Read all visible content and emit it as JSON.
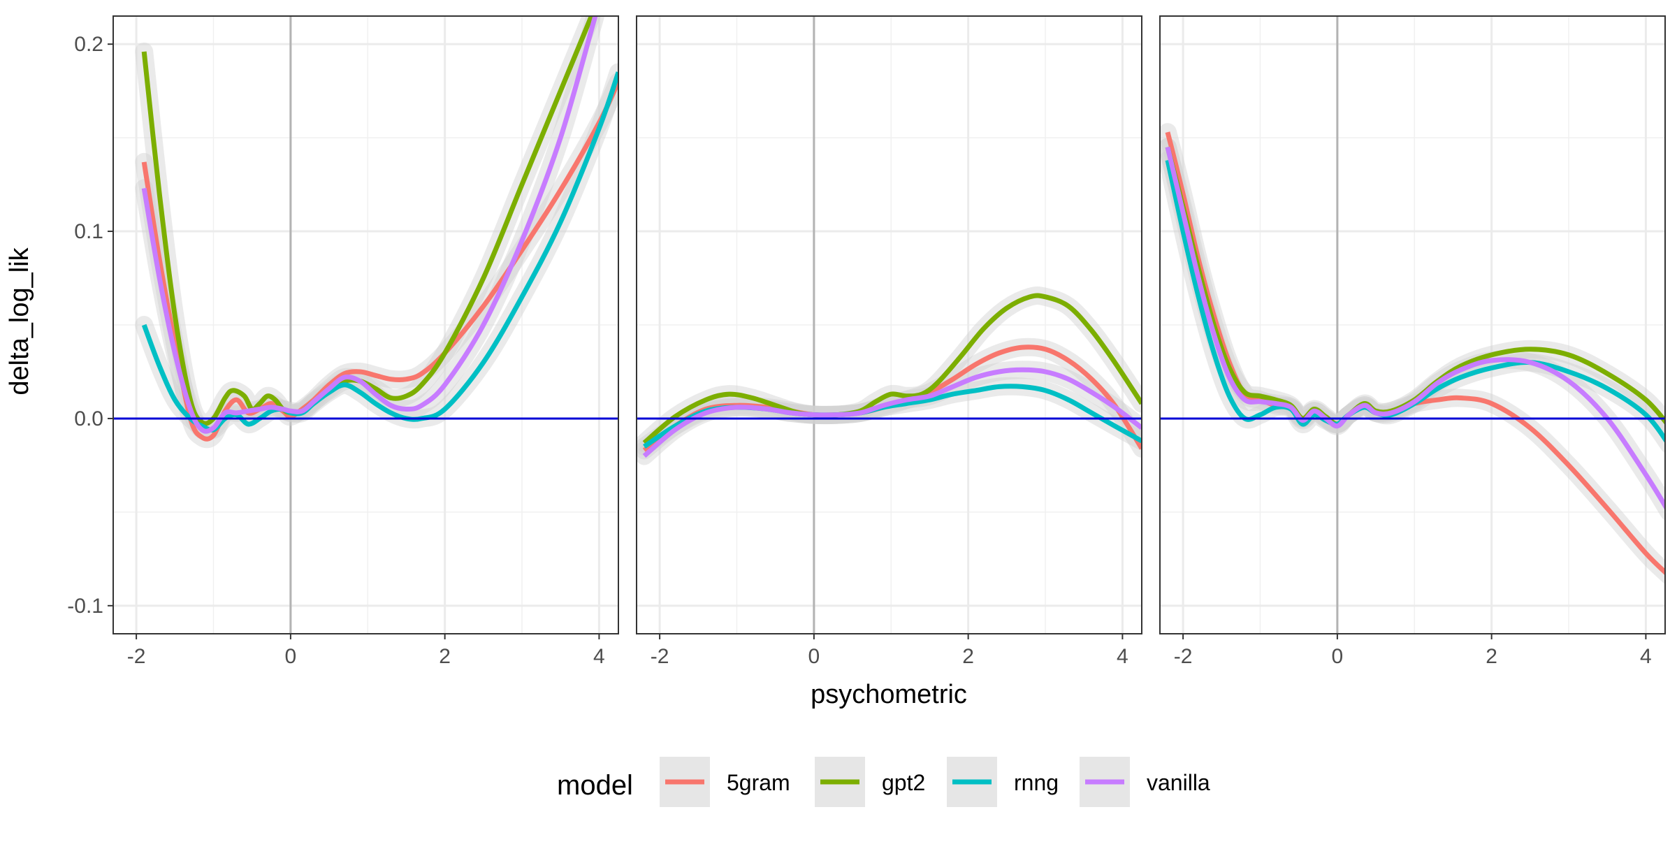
{
  "chart_data": {
    "type": "line",
    "facets": 3,
    "xlabel": "psychometric",
    "ylabel": "delta_log_lik",
    "xlim": [
      -2.3,
      4.25
    ],
    "ylim": [
      -0.115,
      0.215
    ],
    "x_ticks": [
      -2,
      0,
      2,
      4
    ],
    "x_tick_labels": [
      "-2",
      "0",
      "2",
      "4"
    ],
    "y_ticks": [
      -0.1,
      0.0,
      0.1,
      0.2
    ],
    "y_tick_labels": [
      "-0.1",
      "0.0",
      "0.1",
      "0.2"
    ],
    "grid": true,
    "legend": {
      "title": "model",
      "position": "bottom"
    },
    "reference_lines": {
      "horizontal_y": 0,
      "horizontal_color": "#0000d6",
      "vertical_x": 0,
      "vertical_color": "#b3b3b3"
    },
    "ribbon_color": "#d0d0d0",
    "series_meta": [
      {
        "name": "5gram",
        "color": "#F8766D"
      },
      {
        "name": "gpt2",
        "color": "#7CAE00"
      },
      {
        "name": "rnng",
        "color": "#00BFC4"
      },
      {
        "name": "vanilla",
        "color": "#C77CFF"
      }
    ],
    "panels": [
      {
        "series": [
          {
            "name": "5gram",
            "x": [
              -1.9,
              -1.7,
              -1.5,
              -1.3,
              -1.15,
              -1.0,
              -0.85,
              -0.7,
              -0.55,
              -0.4,
              -0.25,
              -0.1,
              0.0,
              0.15,
              0.3,
              0.5,
              0.7,
              0.9,
              1.1,
              1.3,
              1.5,
              1.7,
              2.0,
              2.5,
              3.0,
              3.5,
              4.0,
              4.25
            ],
            "y": [
              0.137,
              0.085,
              0.04,
              0.0,
              -0.01,
              -0.009,
              0.004,
              0.01,
              0.003,
              0.005,
              0.008,
              0.004,
              0.001,
              0.005,
              0.01,
              0.018,
              0.024,
              0.025,
              0.023,
              0.021,
              0.021,
              0.024,
              0.035,
              0.06,
              0.09,
              0.122,
              0.158,
              0.18
            ]
          },
          {
            "name": "gpt2",
            "x": [
              -1.9,
              -1.7,
              -1.5,
              -1.3,
              -1.15,
              -1.0,
              -0.85,
              -0.75,
              -0.6,
              -0.5,
              -0.4,
              -0.3,
              -0.2,
              -0.1,
              0.0,
              0.15,
              0.3,
              0.5,
              0.7,
              0.9,
              1.1,
              1.3,
              1.5,
              1.7,
              2.0,
              2.5,
              3.0,
              3.5,
              3.9
            ],
            "y": [
              0.196,
              0.12,
              0.055,
              0.01,
              -0.002,
              0.0,
              0.011,
              0.015,
              0.012,
              0.005,
              0.008,
              0.012,
              0.01,
              0.005,
              0.003,
              0.004,
              0.009,
              0.015,
              0.02,
              0.02,
              0.016,
              0.011,
              0.012,
              0.018,
              0.035,
              0.075,
              0.125,
              0.175,
              0.215
            ]
          },
          {
            "name": "rnng",
            "x": [
              -1.9,
              -1.7,
              -1.5,
              -1.3,
              -1.15,
              -1.0,
              -0.85,
              -0.7,
              -0.55,
              -0.4,
              -0.25,
              -0.1,
              0.0,
              0.15,
              0.3,
              0.5,
              0.7,
              0.9,
              1.1,
              1.3,
              1.5,
              1.7,
              2.0,
              2.5,
              3.0,
              3.5,
              4.0,
              4.25
            ],
            "y": [
              0.05,
              0.028,
              0.01,
              0.0,
              -0.004,
              -0.006,
              0.0,
              0.002,
              -0.003,
              0.0,
              0.004,
              0.005,
              0.003,
              0.003,
              0.008,
              0.014,
              0.018,
              0.014,
              0.008,
              0.003,
              0.0,
              0.0,
              0.005,
              0.03,
              0.065,
              0.105,
              0.155,
              0.185
            ]
          },
          {
            "name": "vanilla",
            "x": [
              -1.9,
              -1.7,
              -1.5,
              -1.3,
              -1.15,
              -1.0,
              -0.85,
              -0.7,
              -0.55,
              -0.4,
              -0.25,
              -0.1,
              0.0,
              0.15,
              0.3,
              0.5,
              0.7,
              0.9,
              1.1,
              1.3,
              1.5,
              1.7,
              2.0,
              2.5,
              3.0,
              3.5,
              3.95
            ],
            "y": [
              0.123,
              0.075,
              0.035,
              0.005,
              -0.006,
              -0.005,
              0.003,
              0.003,
              0.004,
              0.005,
              0.006,
              0.005,
              0.004,
              0.004,
              0.009,
              0.016,
              0.022,
              0.02,
              0.013,
              0.007,
              0.005,
              0.007,
              0.018,
              0.05,
              0.095,
              0.15,
              0.215
            ]
          }
        ]
      },
      {
        "series": [
          {
            "name": "5gram",
            "x": [
              -2.2,
              -1.8,
              -1.4,
              -1.0,
              -0.6,
              -0.3,
              0.0,
              0.3,
              0.6,
              0.9,
              1.2,
              1.5,
              1.8,
              2.1,
              2.4,
              2.7,
              3.0,
              3.3,
              3.6,
              3.9,
              4.25
            ],
            "y": [
              -0.017,
              -0.004,
              0.005,
              0.007,
              0.006,
              0.004,
              0.002,
              0.002,
              0.003,
              0.006,
              0.01,
              0.014,
              0.021,
              0.029,
              0.035,
              0.038,
              0.037,
              0.031,
              0.021,
              0.007,
              -0.016
            ]
          },
          {
            "name": "gpt2",
            "x": [
              -2.2,
              -1.8,
              -1.4,
              -1.1,
              -0.8,
              -0.5,
              -0.2,
              0.0,
              0.3,
              0.6,
              0.8,
              1.0,
              1.2,
              1.4,
              1.6,
              1.9,
              2.2,
              2.5,
              2.8,
              3.0,
              3.3,
              3.6,
              3.9,
              4.25
            ],
            "y": [
              -0.013,
              0.001,
              0.01,
              0.013,
              0.011,
              0.007,
              0.003,
              0.002,
              0.002,
              0.004,
              0.009,
              0.013,
              0.012,
              0.013,
              0.019,
              0.033,
              0.048,
              0.059,
              0.065,
              0.065,
              0.06,
              0.047,
              0.03,
              0.008
            ]
          },
          {
            "name": "rnng",
            "x": [
              -2.2,
              -1.8,
              -1.4,
              -1.0,
              -0.6,
              -0.3,
              0.0,
              0.3,
              0.6,
              0.9,
              1.2,
              1.5,
              1.8,
              2.1,
              2.4,
              2.7,
              3.0,
              3.3,
              3.6,
              3.9,
              4.25
            ],
            "y": [
              -0.015,
              -0.004,
              0.004,
              0.006,
              0.005,
              0.003,
              0.002,
              0.002,
              0.003,
              0.006,
              0.008,
              0.01,
              0.013,
              0.015,
              0.017,
              0.017,
              0.015,
              0.01,
              0.003,
              -0.004,
              -0.012
            ]
          },
          {
            "name": "vanilla",
            "x": [
              -2.2,
              -1.8,
              -1.4,
              -1.0,
              -0.6,
              -0.3,
              0.0,
              0.3,
              0.6,
              0.9,
              1.2,
              1.5,
              1.8,
              2.1,
              2.4,
              2.7,
              3.0,
              3.3,
              3.6,
              3.9,
              4.25
            ],
            "y": [
              -0.02,
              -0.006,
              0.003,
              0.006,
              0.005,
              0.003,
              0.002,
              0.002,
              0.003,
              0.007,
              0.01,
              0.012,
              0.017,
              0.022,
              0.025,
              0.026,
              0.025,
              0.021,
              0.014,
              0.006,
              -0.005
            ]
          }
        ]
      },
      {
        "series": [
          {
            "name": "5gram",
            "x": [
              -2.2,
              -2.0,
              -1.8,
              -1.6,
              -1.4,
              -1.2,
              -1.0,
              -0.8,
              -0.6,
              -0.45,
              -0.3,
              -0.15,
              0.0,
              0.15,
              0.35,
              0.5,
              0.7,
              1.0,
              1.3,
              1.6,
              2.0,
              2.5,
              3.0,
              3.5,
              4.0,
              4.3
            ],
            "y": [
              0.153,
              0.12,
              0.085,
              0.055,
              0.03,
              0.013,
              0.01,
              0.007,
              0.006,
              0.0,
              0.004,
              0.0,
              -0.003,
              0.002,
              0.007,
              0.003,
              0.004,
              0.008,
              0.01,
              0.011,
              0.008,
              -0.005,
              -0.025,
              -0.048,
              -0.072,
              -0.084
            ]
          },
          {
            "name": "gpt2",
            "x": [
              -2.2,
              -2.0,
              -1.8,
              -1.6,
              -1.4,
              -1.2,
              -1.0,
              -0.8,
              -0.6,
              -0.45,
              -0.3,
              -0.15,
              0.0,
              0.15,
              0.35,
              0.5,
              0.7,
              1.0,
              1.3,
              1.6,
              2.0,
              2.5,
              3.0,
              3.5,
              4.0,
              4.3
            ],
            "y": [
              0.145,
              0.113,
              0.08,
              0.05,
              0.027,
              0.014,
              0.012,
              0.01,
              0.007,
              0.0,
              0.005,
              0.001,
              -0.003,
              0.002,
              0.008,
              0.004,
              0.004,
              0.01,
              0.02,
              0.028,
              0.034,
              0.037,
              0.034,
              0.024,
              0.01,
              -0.004
            ]
          },
          {
            "name": "rnng",
            "x": [
              -2.2,
              -2.0,
              -1.8,
              -1.6,
              -1.4,
              -1.2,
              -1.0,
              -0.8,
              -0.6,
              -0.45,
              -0.3,
              -0.15,
              0.0,
              0.15,
              0.35,
              0.5,
              0.7,
              1.0,
              1.3,
              1.6,
              2.0,
              2.5,
              3.0,
              3.5,
              4.0,
              4.3
            ],
            "y": [
              0.138,
              0.1,
              0.065,
              0.035,
              0.012,
              0.0,
              0.002,
              0.006,
              0.005,
              -0.003,
              0.002,
              -0.001,
              -0.003,
              0.002,
              0.006,
              0.003,
              0.002,
              0.008,
              0.016,
              0.022,
              0.027,
              0.03,
              0.025,
              0.016,
              0.002,
              -0.014
            ]
          },
          {
            "name": "vanilla",
            "x": [
              -2.2,
              -2.0,
              -1.8,
              -1.6,
              -1.4,
              -1.2,
              -1.0,
              -0.8,
              -0.6,
              -0.45,
              -0.3,
              -0.15,
              0.0,
              0.15,
              0.35,
              0.5,
              0.7,
              1.0,
              1.3,
              1.6,
              2.0,
              2.5,
              3.0,
              3.5,
              4.0,
              4.3
            ],
            "y": [
              0.145,
              0.11,
              0.075,
              0.045,
              0.022,
              0.01,
              0.009,
              0.008,
              0.006,
              -0.001,
              0.004,
              0.0,
              -0.004,
              0.002,
              0.007,
              0.003,
              0.003,
              0.009,
              0.019,
              0.026,
              0.031,
              0.03,
              0.02,
              0.0,
              -0.03,
              -0.05
            ]
          }
        ]
      }
    ]
  }
}
